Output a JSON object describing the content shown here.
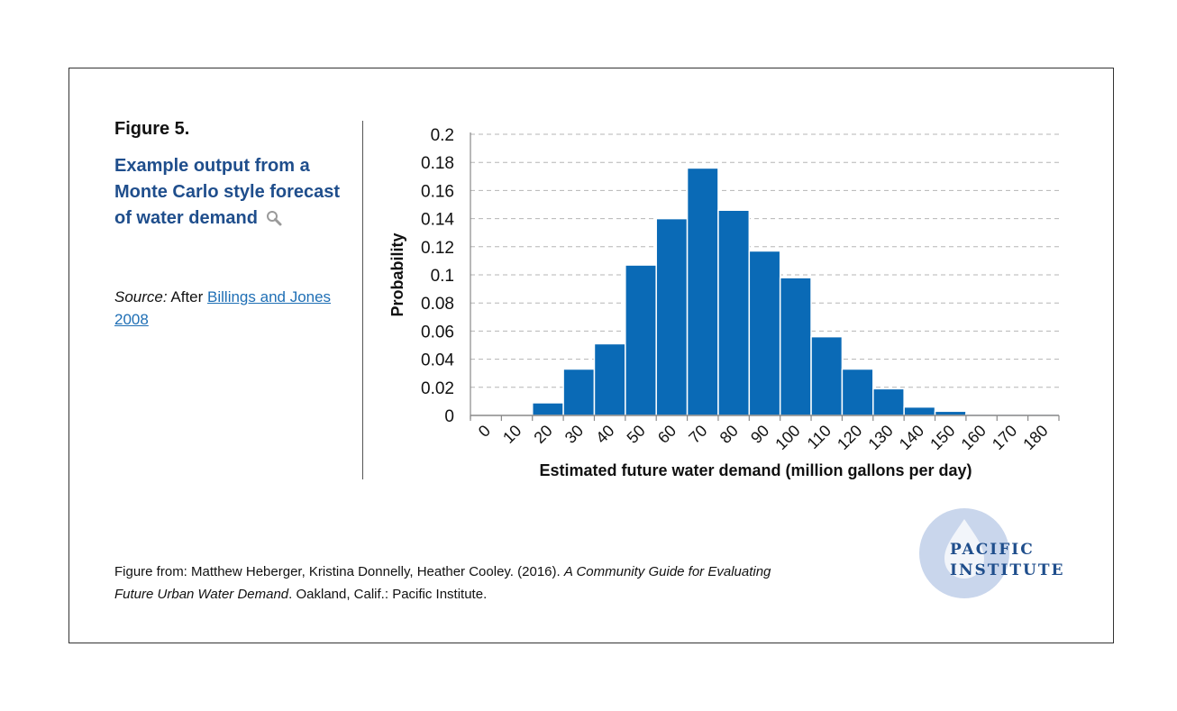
{
  "figure": {
    "number": "Figure 5.",
    "title": "Example output from a Monte Carlo style forecast of water demand",
    "zoom_icon": "magnifier-icon"
  },
  "source": {
    "label": "Source:",
    "prefix": "After",
    "link_line1": "Billings and Jones",
    "link_line2": "2008"
  },
  "credit": {
    "prefix": "Figure from: Matthew Heberger, Kristina Donnelly, Heather Cooley. (2016).",
    "italic": "A Community Guide for Evaluating Future Urban Water Demand",
    "suffix": ". Oakland, Calif.: Pacific Institute."
  },
  "logo": {
    "line1": "PACIFIC",
    "line2": "INSTITUTE",
    "icon": "water-drop-icon",
    "color": "#1f4e8c",
    "circle_color": "#c9d6ec"
  },
  "chart_data": {
    "type": "bar",
    "categories": [
      "0",
      "10",
      "20",
      "30",
      "40",
      "50",
      "60",
      "70",
      "80",
      "90",
      "100",
      "110",
      "120",
      "130",
      "140",
      "150",
      "160",
      "170",
      "180"
    ],
    "values": [
      0,
      0,
      0.009,
      0.033,
      0.051,
      0.107,
      0.14,
      0.176,
      0.146,
      0.117,
      0.098,
      0.056,
      0.033,
      0.019,
      0.006,
      0.003,
      0.001,
      0.001,
      0.001
    ],
    "yticks": [
      "0",
      "0.02",
      "0.04",
      "0.06",
      "0.08",
      "0.1",
      "0.12",
      "0.14",
      "0.16",
      "0.18",
      "0.2"
    ],
    "ylim": [
      0,
      0.2
    ],
    "xlabel": "Estimated future water demand (million gallons per day)",
    "ylabel": "Probability",
    "bar_color": "#0a6ab6",
    "grid": true
  }
}
